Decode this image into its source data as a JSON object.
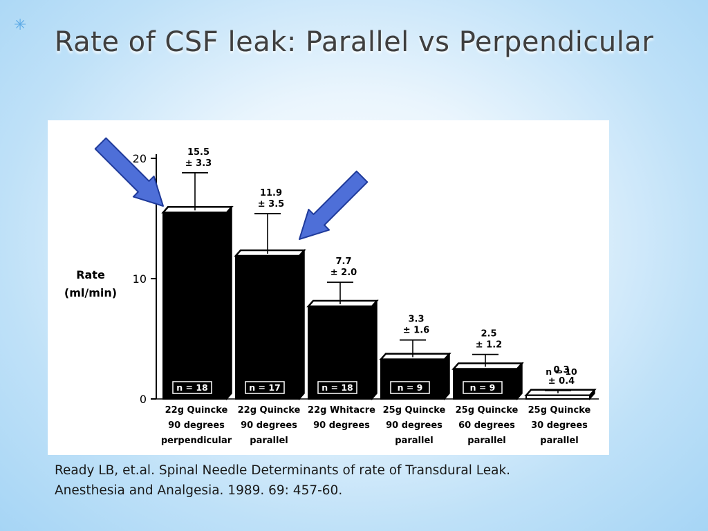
{
  "slide": {
    "title": "Rate of CSF leak: Parallel vs Perpendicular",
    "citation_line1": "Ready LB, et.al. Spinal Needle Determinants of rate of Transdural Leak.",
    "citation_line2": "Anesthesia and Analgesia.  1989.  69: 457-60."
  },
  "colors": {
    "bar": "#000000",
    "arrow_fill": "#4e6fd8",
    "arrow_stroke": "#1f3a9a",
    "title": "#3f3f3f"
  },
  "chart_data": {
    "type": "bar",
    "title": "",
    "ylabel_line1": "Rate",
    "ylabel_line2": "(ml/min)",
    "xlabel": "",
    "ylim": [
      0,
      20
    ],
    "yticks": [
      0,
      10,
      20
    ],
    "grid": false,
    "bar_style": "3d",
    "categories": [
      [
        "22g Quincke",
        "90 degrees",
        "perpendicular"
      ],
      [
        "22g Quincke",
        "90 degrees",
        "parallel"
      ],
      [
        "22g Whitacre",
        "90 degrees"
      ],
      [
        "25g Quincke",
        "90 degrees",
        "parallel"
      ],
      [
        "25g Quincke",
        "60 degrees",
        "parallel"
      ],
      [
        "25g Quincke",
        "30 degrees",
        "parallel"
      ]
    ],
    "values": [
      15.5,
      11.9,
      7.7,
      3.3,
      2.5,
      0.3
    ],
    "errors": [
      3.3,
      3.5,
      2.0,
      1.6,
      1.2,
      0.4
    ],
    "value_labels": [
      "15.5",
      "11.9",
      "7.7",
      "3.3",
      "2.5",
      "0.3"
    ],
    "error_labels": [
      "± 3.3",
      "± 3.5",
      "± 2.0",
      "± 1.6",
      "± 1.2",
      "± 0.4"
    ],
    "n_labels": [
      "n = 18",
      "n = 17",
      "n = 18",
      "n = 9",
      "n = 9",
      "n = 10"
    ],
    "highlighted_bars": [
      0,
      1
    ]
  }
}
